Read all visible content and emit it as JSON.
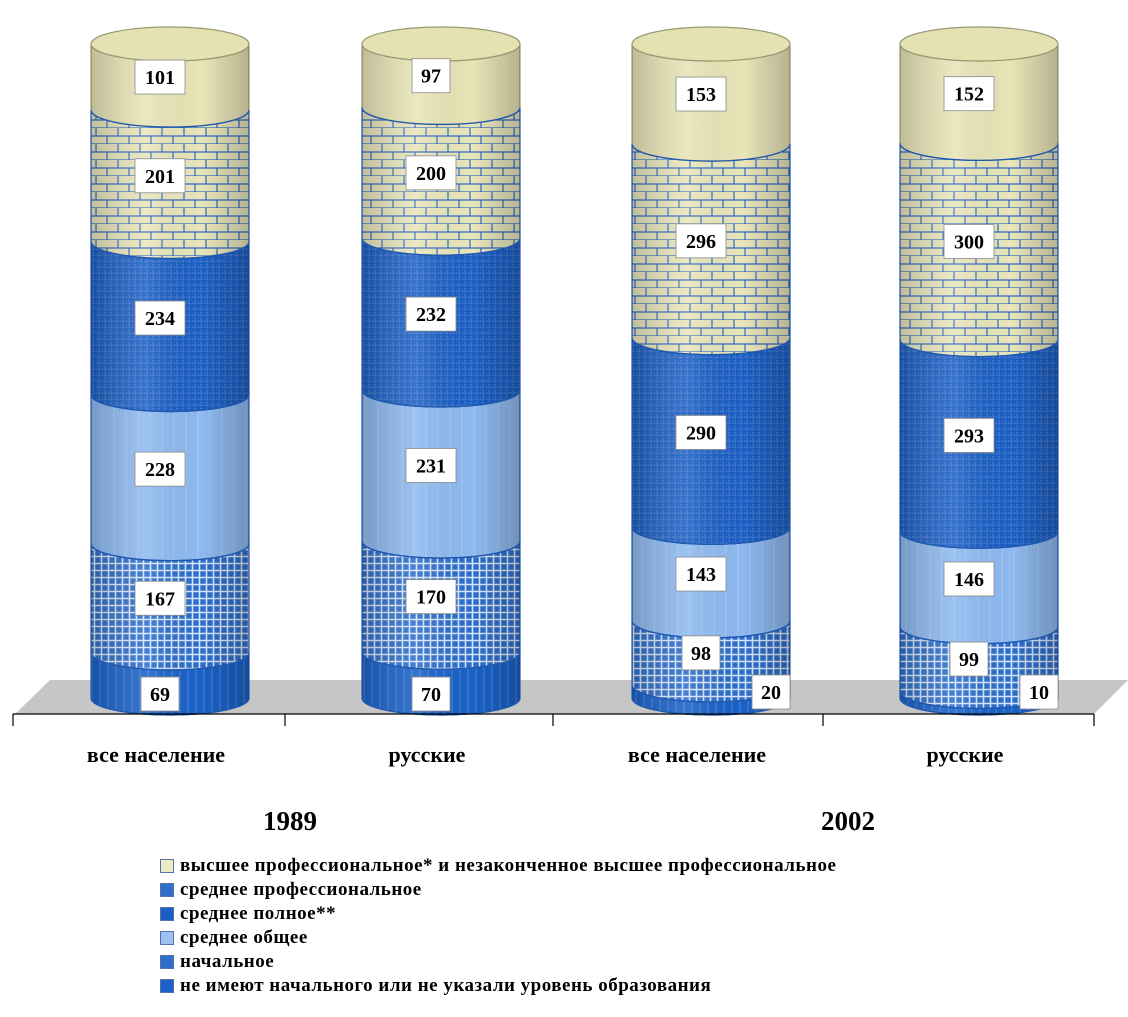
{
  "chart_data": {
    "type": "bar",
    "stacked": true,
    "title": "",
    "groups": [
      "1989",
      "2002"
    ],
    "categories": [
      "все население",
      "русские",
      "все население",
      "русские"
    ],
    "category_groups": [
      "1989",
      "1989",
      "2002",
      "2002"
    ],
    "series": [
      {
        "key": "none",
        "name": "не имеют начального или не указали уровень образования",
        "values": [
          69,
          70,
          20,
          10
        ],
        "color": "#1a62c8"
      },
      {
        "key": "primary",
        "name": "начальное",
        "values": [
          167,
          170,
          98,
          99
        ],
        "color": "#3a74cf"
      },
      {
        "key": "general",
        "name": "среднее общее",
        "values": [
          228,
          231,
          143,
          146
        ],
        "color": "#8fbaf0"
      },
      {
        "key": "full",
        "name": "среднее полное**",
        "values": [
          234,
          232,
          290,
          293
        ],
        "color": "#1c5fc4"
      },
      {
        "key": "prof",
        "name": "среднее профессиональное",
        "values": [
          201,
          200,
          296,
          300
        ],
        "color": "#e9e6bc"
      },
      {
        "key": "higher",
        "name": "высшее профессиональное* и незаконченное высшее профессиональное",
        "values": [
          101,
          97,
          153,
          152
        ],
        "color": "#e8e5b8"
      }
    ],
    "legend_position": "bottom",
    "legend_order": [
      "higher",
      "prof",
      "full",
      "general",
      "primary",
      "none"
    ]
  }
}
